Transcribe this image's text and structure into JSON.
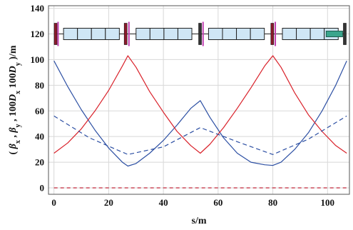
{
  "chart_data": {
    "type": "line",
    "title": "",
    "xlabel": "s/m",
    "ylabel_parts": [
      "( ",
      "β",
      "x",
      " , ",
      "β",
      "y",
      " , 100",
      "D",
      "x",
      "  100",
      "D",
      "y",
      " )/m"
    ],
    "xlim": [
      -2,
      108
    ],
    "ylim": [
      -5,
      142
    ],
    "x_ticks": [
      0,
      20,
      40,
      60,
      80,
      100
    ],
    "y_ticks": [
      0,
      20,
      40,
      60,
      80,
      100,
      120,
      140
    ],
    "grid": true,
    "colors": {
      "blue": "#2c4fa3",
      "red": "#d9212a",
      "dred": "#c0283a"
    },
    "series": [
      {
        "style": "blue-solid",
        "x": [
          0,
          5,
          10,
          15,
          20,
          25,
          27,
          30,
          35,
          40,
          45,
          50,
          53.5,
          57,
          62,
          67,
          72,
          77,
          80,
          83,
          88,
          93,
          98,
          103,
          107
        ],
        "y": [
          99,
          79,
          61,
          45,
          31,
          20,
          17,
          19,
          27,
          37,
          49,
          62,
          68,
          55,
          39,
          27,
          20,
          18,
          17.5,
          20,
          30,
          43,
          60,
          80,
          99
        ]
      },
      {
        "style": "red-solid",
        "x": [
          0,
          5,
          10,
          15,
          20,
          25,
          27,
          30,
          35,
          40,
          45,
          50,
          53.5,
          57,
          62,
          67,
          72,
          77,
          80,
          83,
          88,
          93,
          98,
          103,
          107
        ],
        "y": [
          27,
          35,
          46,
          60,
          76,
          95,
          103,
          94,
          75,
          59,
          44,
          33,
          27,
          34,
          47,
          62,
          78,
          95,
          103,
          94,
          74,
          57,
          44,
          33,
          27
        ]
      },
      {
        "style": "blue-dashed",
        "x": [
          0,
          13,
          27,
          40,
          53.5,
          67,
          80,
          93,
          107
        ],
        "y": [
          56,
          39,
          26,
          32,
          47,
          36,
          26,
          38,
          56
        ]
      },
      {
        "style": "red-dashed",
        "x": [
          0,
          107
        ],
        "y": [
          0,
          0
        ]
      }
    ]
  }
}
